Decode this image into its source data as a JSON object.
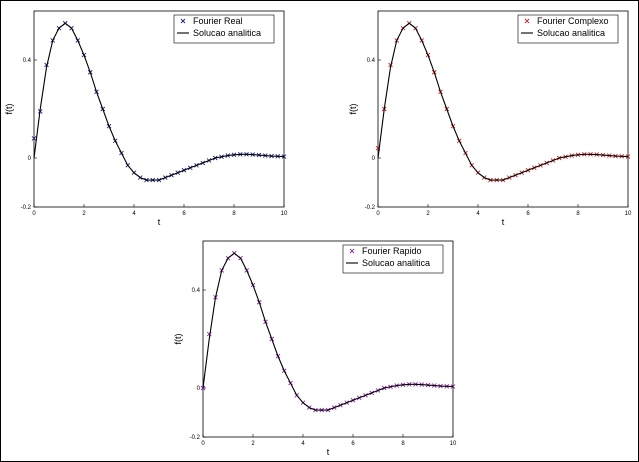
{
  "chart_data": [
    {
      "type": "line",
      "xlabel": "t",
      "ylabel": "f(t)",
      "xlim": [
        0,
        10
      ],
      "ylim": [
        -0.2,
        0.6
      ],
      "xticks": [
        "0",
        "2",
        "4",
        "6",
        "8",
        "10"
      ],
      "yticks": [
        "-0.2",
        "0",
        "0.4"
      ],
      "ytick_values": [
        -0.2,
        0,
        0.4
      ],
      "grid": false,
      "legend_position": "top-right",
      "series": [
        {
          "name": "Fourier Real",
          "kind": "markers",
          "marker": "x",
          "color": "#1a237e",
          "x": [
            0,
            0.25,
            0.5,
            0.75,
            1,
            1.25,
            1.5,
            1.75,
            2,
            2.25,
            2.5,
            2.75,
            3,
            3.25,
            3.5,
            3.75,
            4,
            4.25,
            4.5,
            4.75,
            5,
            5.25,
            5.5,
            5.75,
            6,
            6.25,
            6.5,
            6.75,
            7,
            7.25,
            7.5,
            7.75,
            8,
            8.25,
            8.5,
            8.75,
            9,
            9.25,
            9.5,
            9.75,
            10
          ],
          "y": [
            0.08,
            0.19,
            0.38,
            0.48,
            0.53,
            0.55,
            0.53,
            0.48,
            0.42,
            0.35,
            0.27,
            0.2,
            0.13,
            0.07,
            0.02,
            -0.03,
            -0.06,
            -0.08,
            -0.09,
            -0.09,
            -0.09,
            -0.08,
            -0.07,
            -0.06,
            -0.05,
            -0.04,
            -0.03,
            -0.02,
            -0.01,
            0,
            0.005,
            0.01,
            0.013,
            0.015,
            0.015,
            0.014,
            0.012,
            0.01,
            0.008,
            0.007,
            0.006
          ]
        },
        {
          "name": "Solucao analitica",
          "kind": "line",
          "color": "#000000",
          "x": [
            0,
            0.25,
            0.5,
            0.75,
            1,
            1.25,
            1.5,
            1.75,
            2,
            2.25,
            2.5,
            2.75,
            3,
            3.25,
            3.5,
            3.75,
            4,
            4.25,
            4.5,
            4.75,
            5,
            5.25,
            5.5,
            5.75,
            6,
            6.25,
            6.5,
            6.75,
            7,
            7.25,
            7.5,
            7.75,
            8,
            8.25,
            8.5,
            8.75,
            9,
            9.25,
            9.5,
            9.75,
            10
          ],
          "y": [
            0,
            0.2,
            0.37,
            0.48,
            0.53,
            0.55,
            0.53,
            0.48,
            0.42,
            0.35,
            0.27,
            0.2,
            0.13,
            0.07,
            0.02,
            -0.03,
            -0.06,
            -0.08,
            -0.09,
            -0.09,
            -0.09,
            -0.08,
            -0.07,
            -0.06,
            -0.05,
            -0.04,
            -0.03,
            -0.02,
            -0.01,
            0,
            0.005,
            0.01,
            0.013,
            0.015,
            0.015,
            0.014,
            0.012,
            0.01,
            0.008,
            0.007,
            0.006
          ]
        }
      ]
    },
    {
      "type": "line",
      "xlabel": "t",
      "ylabel": "f(t)",
      "xlim": [
        0,
        10
      ],
      "ylim": [
        -0.2,
        0.6
      ],
      "xticks": [
        "0",
        "2",
        "4",
        "6",
        "8",
        "10"
      ],
      "yticks": [
        "-0.2",
        "0",
        "0.4"
      ],
      "ytick_values": [
        -0.2,
        0,
        0.4
      ],
      "grid": false,
      "legend_position": "top-right",
      "series": [
        {
          "name": "Fourier Complexo",
          "kind": "markers",
          "marker": "x",
          "color": "#c62828",
          "x": [
            0,
            0.25,
            0.5,
            0.75,
            1,
            1.25,
            1.5,
            1.75,
            2,
            2.25,
            2.5,
            2.75,
            3,
            3.25,
            3.5,
            3.75,
            4,
            4.25,
            4.5,
            4.75,
            5,
            5.25,
            5.5,
            5.75,
            6,
            6.25,
            6.5,
            6.75,
            7,
            7.25,
            7.5,
            7.75,
            8,
            8.25,
            8.5,
            8.75,
            9,
            9.25,
            9.5,
            9.75,
            10
          ],
          "y": [
            0.04,
            0.2,
            0.38,
            0.48,
            0.53,
            0.55,
            0.53,
            0.48,
            0.42,
            0.35,
            0.27,
            0.2,
            0.13,
            0.07,
            0.02,
            -0.03,
            -0.06,
            -0.08,
            -0.09,
            -0.09,
            -0.09,
            -0.08,
            -0.07,
            -0.06,
            -0.05,
            -0.04,
            -0.03,
            -0.02,
            -0.01,
            0,
            0.005,
            0.01,
            0.013,
            0.015,
            0.015,
            0.014,
            0.012,
            0.01,
            0.008,
            0.007,
            0.006
          ]
        },
        {
          "name": "Solucao analitica",
          "kind": "line",
          "color": "#000000",
          "x": [
            0,
            0.25,
            0.5,
            0.75,
            1,
            1.25,
            1.5,
            1.75,
            2,
            2.25,
            2.5,
            2.75,
            3,
            3.25,
            3.5,
            3.75,
            4,
            4.25,
            4.5,
            4.75,
            5,
            5.25,
            5.5,
            5.75,
            6,
            6.25,
            6.5,
            6.75,
            7,
            7.25,
            7.5,
            7.75,
            8,
            8.25,
            8.5,
            8.75,
            9,
            9.25,
            9.5,
            9.75,
            10
          ],
          "y": [
            0,
            0.2,
            0.37,
            0.48,
            0.53,
            0.55,
            0.53,
            0.48,
            0.42,
            0.35,
            0.27,
            0.2,
            0.13,
            0.07,
            0.02,
            -0.03,
            -0.06,
            -0.08,
            -0.09,
            -0.09,
            -0.09,
            -0.08,
            -0.07,
            -0.06,
            -0.05,
            -0.04,
            -0.03,
            -0.02,
            -0.01,
            0,
            0.005,
            0.01,
            0.013,
            0.015,
            0.015,
            0.014,
            0.012,
            0.01,
            0.008,
            0.007,
            0.006
          ]
        }
      ]
    },
    {
      "type": "line",
      "xlabel": "t",
      "ylabel": "f(t)",
      "xlim": [
        0,
        10
      ],
      "ylim": [
        -0.2,
        0.6
      ],
      "xticks": [
        "0",
        "2",
        "4",
        "6",
        "8",
        "10"
      ],
      "yticks": [
        "-0.2",
        "0",
        "0.4"
      ],
      "ytick_values": [
        -0.2,
        0,
        0.4
      ],
      "grid": false,
      "legend_position": "top-right",
      "series": [
        {
          "name": "Fourier Rapido",
          "kind": "markers",
          "marker": "x",
          "color": "#8e24aa",
          "x": [
            0,
            0.25,
            0.5,
            0.75,
            1,
            1.25,
            1.5,
            1.75,
            2,
            2.25,
            2.5,
            2.75,
            3,
            3.25,
            3.5,
            3.75,
            4,
            4.25,
            4.5,
            4.75,
            5,
            5.25,
            5.5,
            5.75,
            6,
            6.25,
            6.5,
            6.75,
            7,
            7.25,
            7.5,
            7.75,
            8,
            8.25,
            8.5,
            8.75,
            9,
            9.25,
            9.5,
            9.75,
            10
          ],
          "y": [
            0,
            0.22,
            0.37,
            0.48,
            0.53,
            0.55,
            0.53,
            0.48,
            0.42,
            0.35,
            0.27,
            0.2,
            0.13,
            0.07,
            0.02,
            -0.03,
            -0.06,
            -0.08,
            -0.09,
            -0.09,
            -0.09,
            -0.08,
            -0.07,
            -0.06,
            -0.05,
            -0.04,
            -0.03,
            -0.02,
            -0.01,
            0,
            0.005,
            0.01,
            0.013,
            0.015,
            0.015,
            0.014,
            0.012,
            0.01,
            0.008,
            0.007,
            0.006
          ]
        },
        {
          "name": "Solucao analitica",
          "kind": "line",
          "color": "#000000",
          "x": [
            0,
            0.25,
            0.5,
            0.75,
            1,
            1.25,
            1.5,
            1.75,
            2,
            2.25,
            2.5,
            2.75,
            3,
            3.25,
            3.5,
            3.75,
            4,
            4.25,
            4.5,
            4.75,
            5,
            5.25,
            5.5,
            5.75,
            6,
            6.25,
            6.5,
            6.75,
            7,
            7.25,
            7.5,
            7.75,
            8,
            8.25,
            8.5,
            8.75,
            9,
            9.25,
            9.5,
            9.75,
            10
          ],
          "y": [
            0,
            0.2,
            0.37,
            0.48,
            0.53,
            0.55,
            0.53,
            0.48,
            0.42,
            0.35,
            0.27,
            0.2,
            0.13,
            0.07,
            0.02,
            -0.03,
            -0.06,
            -0.08,
            -0.09,
            -0.09,
            -0.09,
            -0.08,
            -0.07,
            -0.06,
            -0.05,
            -0.04,
            -0.03,
            -0.02,
            -0.01,
            0,
            0.005,
            0.01,
            0.013,
            0.015,
            0.015,
            0.014,
            0.012,
            0.01,
            0.008,
            0.007,
            0.006
          ]
        }
      ]
    }
  ]
}
